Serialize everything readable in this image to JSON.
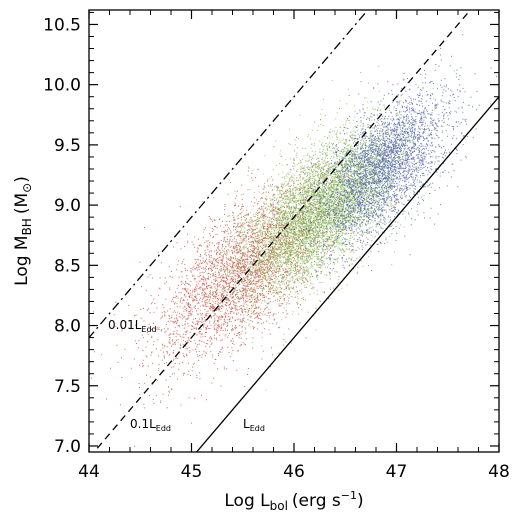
{
  "chart_data": {
    "type": "scatter",
    "xlabel": {
      "main": "Log L",
      "sub": "bol",
      "unit": "(erg s",
      "sup": "−1",
      "close": ")"
    },
    "ylabel": {
      "main": "Log M",
      "sub": "BH",
      "unit": "(M",
      "sym": "⊙",
      "close": ")"
    },
    "xlim": [
      44.0,
      48.0
    ],
    "ylim": [
      6.95,
      10.62
    ],
    "x_ticks": [
      44,
      45,
      46,
      47,
      48
    ],
    "y_ticks": [
      7.0,
      7.5,
      8.0,
      8.5,
      9.0,
      9.5,
      10.0,
      10.5
    ],
    "x_tick_labels": [
      "44",
      "45",
      "46",
      "47",
      "48"
    ],
    "y_tick_labels": [
      "7.0",
      "7.5",
      "8.0",
      "8.5",
      "9.0",
      "9.5",
      "10.0",
      "10.5"
    ],
    "series": [
      {
        "color": "#c0392b",
        "center": [
          45.5,
          8.45
        ],
        "spread": [
          0.4,
          0.42
        ],
        "count": 3500
      },
      {
        "color": "#7cb342",
        "center": [
          46.25,
          8.95
        ],
        "spread": [
          0.35,
          0.38
        ],
        "count": 6500
      },
      {
        "color": "#3f51a5",
        "center": [
          46.85,
          9.3
        ],
        "spread": [
          0.27,
          0.35
        ],
        "count": 3500
      }
    ],
    "reference_lines": [
      {
        "label": "0.01L",
        "label_sub": "Edd",
        "style": "dashdot",
        "offset": 2.0
      },
      {
        "label": "0.1L",
        "label_sub": "Edd",
        "style": "dashed",
        "offset": 1.0
      },
      {
        "label": "L",
        "label_sub": "Edd",
        "style": "solid",
        "offset": 0.0
      }
    ],
    "line_relation": "log L = log M + 38.1 + log(lambda_Edd)",
    "grid": false,
    "legend": "none"
  }
}
